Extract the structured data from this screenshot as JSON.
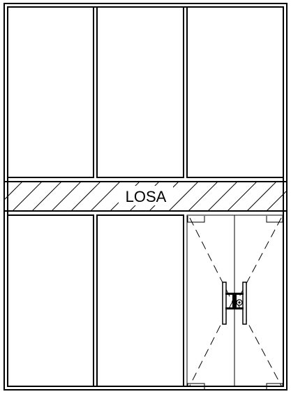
{
  "slab": {
    "label": "LOSA"
  },
  "door": {
    "leaves": 2,
    "opening_type": "double-swing"
  },
  "colors": {
    "line": "#000000",
    "background": "#ffffff"
  }
}
